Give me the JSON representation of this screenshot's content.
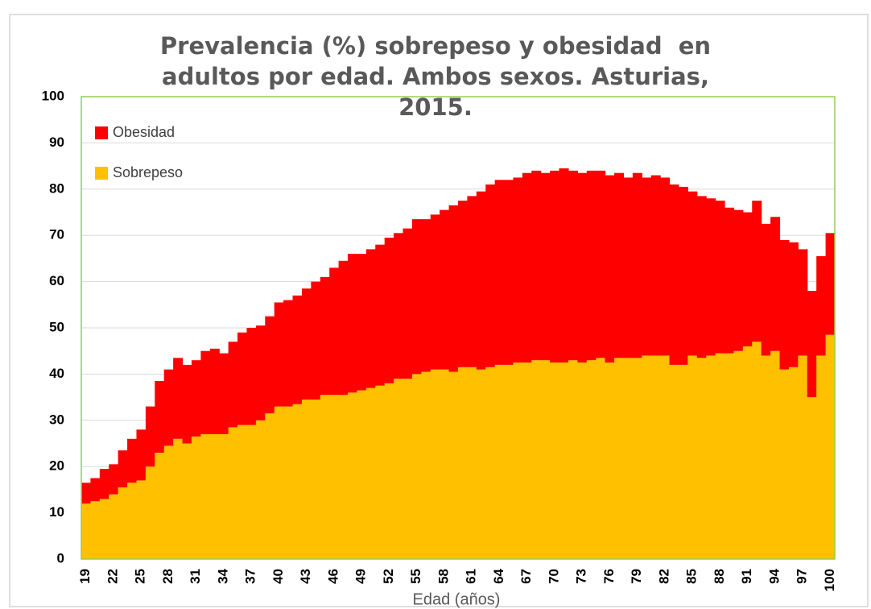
{
  "chart_data": {
    "type": "stacked_bar",
    "title": "Prevalencia (%) sobrepeso y obesidad  en adultos por edad. Ambos sexos. Asturias, 2015.",
    "x_label": "Edad (años)",
    "categories": [
      "19",
      null,
      null,
      "22",
      null,
      null,
      "25",
      null,
      null,
      "28",
      null,
      null,
      "31",
      null,
      null,
      "34",
      null,
      null,
      "37",
      null,
      null,
      "40",
      null,
      null,
      "43",
      null,
      null,
      "46",
      null,
      null,
      "49",
      null,
      null,
      "52",
      null,
      null,
      "55",
      null,
      null,
      "58",
      null,
      null,
      "61",
      null,
      null,
      "64",
      null,
      null,
      "67",
      null,
      null,
      "70",
      null,
      null,
      "73",
      null,
      null,
      "76",
      null,
      null,
      "79",
      null,
      null,
      "82",
      null,
      null,
      "85",
      null,
      null,
      "88",
      null,
      null,
      "91",
      null,
      null,
      "94",
      null,
      null,
      "97",
      null,
      null,
      "100"
    ],
    "series": [
      {
        "name": "Sobrepeso",
        "color": "#FFC000",
        "values": [
          12,
          12.5,
          13,
          14,
          15.5,
          16.5,
          17,
          20,
          23,
          24.5,
          26,
          25,
          26.5,
          27,
          27,
          27,
          28.5,
          29,
          29,
          30,
          31.5,
          33,
          33,
          33.5,
          34.5,
          34.5,
          35.5,
          35.5,
          35.5,
          36,
          36.5,
          37,
          37.5,
          38,
          39,
          39,
          40,
          40.5,
          41,
          41,
          40.5,
          41.5,
          41.5,
          41,
          41.5,
          42,
          42,
          42.5,
          42.5,
          43,
          43,
          42.5,
          42.5,
          43,
          42.5,
          43,
          43.5,
          42.5,
          43.5,
          43.5,
          43.5,
          44,
          44,
          44,
          42,
          42,
          44,
          43.5,
          44,
          44.5,
          44.5,
          45,
          46,
          47,
          44,
          45,
          41,
          41.5,
          44,
          35,
          44,
          48.5
        ]
      },
      {
        "name": "Obesidad",
        "color": "#FF0000",
        "values": [
          4.5,
          5,
          6.5,
          6.5,
          8,
          9.5,
          11,
          13,
          15.5,
          16.5,
          17.5,
          17,
          16.5,
          18,
          18.5,
          17.5,
          18.5,
          20,
          21,
          20.5,
          21,
          22.5,
          23,
          23.5,
          24,
          25.5,
          25.5,
          27.5,
          29,
          30,
          29.5,
          30,
          30.5,
          31.5,
          31.5,
          32.5,
          33.5,
          33,
          33.5,
          34.5,
          36,
          36,
          37,
          38.5,
          39.5,
          40,
          40,
          40,
          41,
          41,
          40.5,
          41.5,
          42,
          41,
          41,
          41,
          40.5,
          40.5,
          40,
          39,
          40,
          38.5,
          39,
          38.5,
          39,
          38.5,
          35.5,
          35,
          34,
          33,
          31.5,
          30.5,
          29,
          30.5,
          28.5,
          29,
          28,
          27,
          23,
          23,
          21.5,
          22
        ]
      }
    ],
    "legend_order": [
      "Obesidad",
      "Sobrepeso"
    ],
    "ylim": [
      0,
      100
    ],
    "yticks": [
      0,
      10,
      20,
      30,
      40,
      50,
      60,
      70,
      80,
      90,
      100
    ],
    "grid": true
  }
}
